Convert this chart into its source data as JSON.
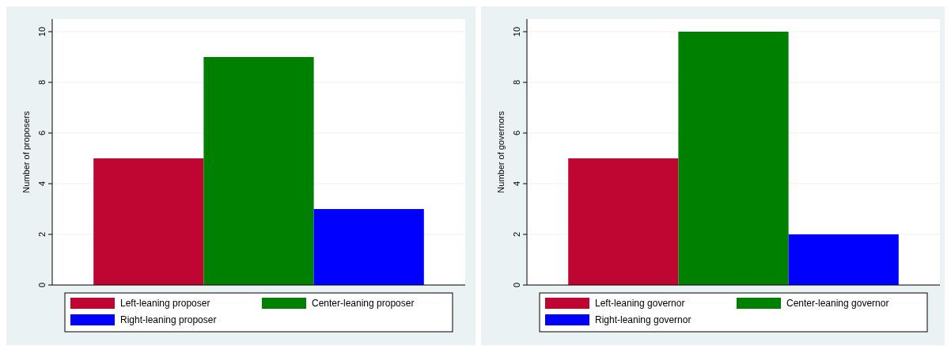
{
  "chart_data": [
    {
      "type": "bar",
      "ylabel": "Number of proposers",
      "categories": [
        null
      ],
      "series": [
        {
          "name": "Left-leaning proposer",
          "color": "#bf0633",
          "values": [
            5
          ]
        },
        {
          "name": "Center-leaning proposer",
          "color": "#008000",
          "values": [
            9
          ]
        },
        {
          "name": "Right-leaning proposer",
          "color": "#0000ff",
          "values": [
            3
          ]
        }
      ],
      "ylim": [
        0,
        10.5
      ],
      "yticks": [
        0,
        2,
        4,
        6,
        8,
        10
      ],
      "grid": "y",
      "legend": "bottom",
      "tick_labels": "y"
    },
    {
      "type": "bar",
      "ylabel": "Number of governors",
      "categories": [
        null
      ],
      "series": [
        {
          "name": "Left-leaning governor",
          "color": "#bf0633",
          "values": [
            5
          ]
        },
        {
          "name": "Center-leaning governor",
          "color": "#008000",
          "values": [
            10
          ]
        },
        {
          "name": "Right-leaning governor",
          "color": "#0000ff",
          "values": [
            2
          ]
        }
      ],
      "ylim": [
        0,
        10.5
      ],
      "yticks": [
        0,
        2,
        4,
        6,
        8,
        10
      ],
      "grid": "y",
      "legend": "bottom",
      "tick_labels": "y"
    }
  ]
}
